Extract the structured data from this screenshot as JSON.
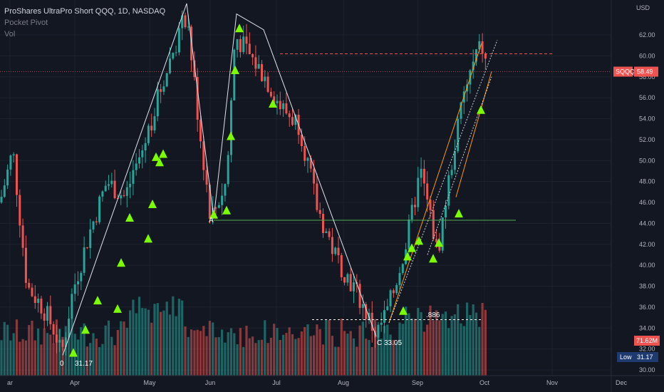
{
  "legend": {
    "title": "ProShares UltraPro Short QQQ, 1D, NASDAQ",
    "indicator_1": "Pocket Pivot",
    "indicator_2": "Vol"
  },
  "chart_data": {
    "type": "candlestick",
    "symbol": "SQQQ",
    "currency": "USD",
    "y_ticks": [
      30,
      32,
      34,
      36,
      38,
      40,
      42,
      44,
      46,
      48,
      50,
      52,
      54,
      56,
      58,
      60,
      62
    ],
    "y_tick_labels": [
      "30.00",
      "32.00",
      "34.00",
      "36.00",
      "38.00",
      "40.00",
      "42.00",
      "44.00",
      "46.00",
      "48.00",
      "50.00",
      "52.00",
      "54.00",
      "56.00",
      "58.00",
      "60.00",
      "62.00"
    ],
    "x_labels": [
      "ar",
      "Apr",
      "May",
      "Jun",
      "Jul",
      "Aug",
      "Sep",
      "Oct",
      "Nov",
      "Dec"
    ],
    "last_price": 58.49,
    "last_price_label": "58.49",
    "volume_label": "71.62M",
    "low_label": "Low",
    "low_value": "31.17",
    "annotations": {
      "point_0": "0",
      "point_0_value": "31.17",
      "point_a": "A",
      "point_c": "C 33.05",
      "fib_label": ".886"
    },
    "horizontal_levels": {
      "resistance_red": 60.2,
      "support_green": 44.3,
      "fib_white": 34.8
    }
  },
  "colors": {
    "background": "#131722",
    "up": "#26a69a",
    "down": "#ef5350",
    "grid": "#1e222d",
    "triangle": "#7cfc00",
    "price_tag": "#ef5350",
    "low_tag": "#1e3a6e"
  }
}
